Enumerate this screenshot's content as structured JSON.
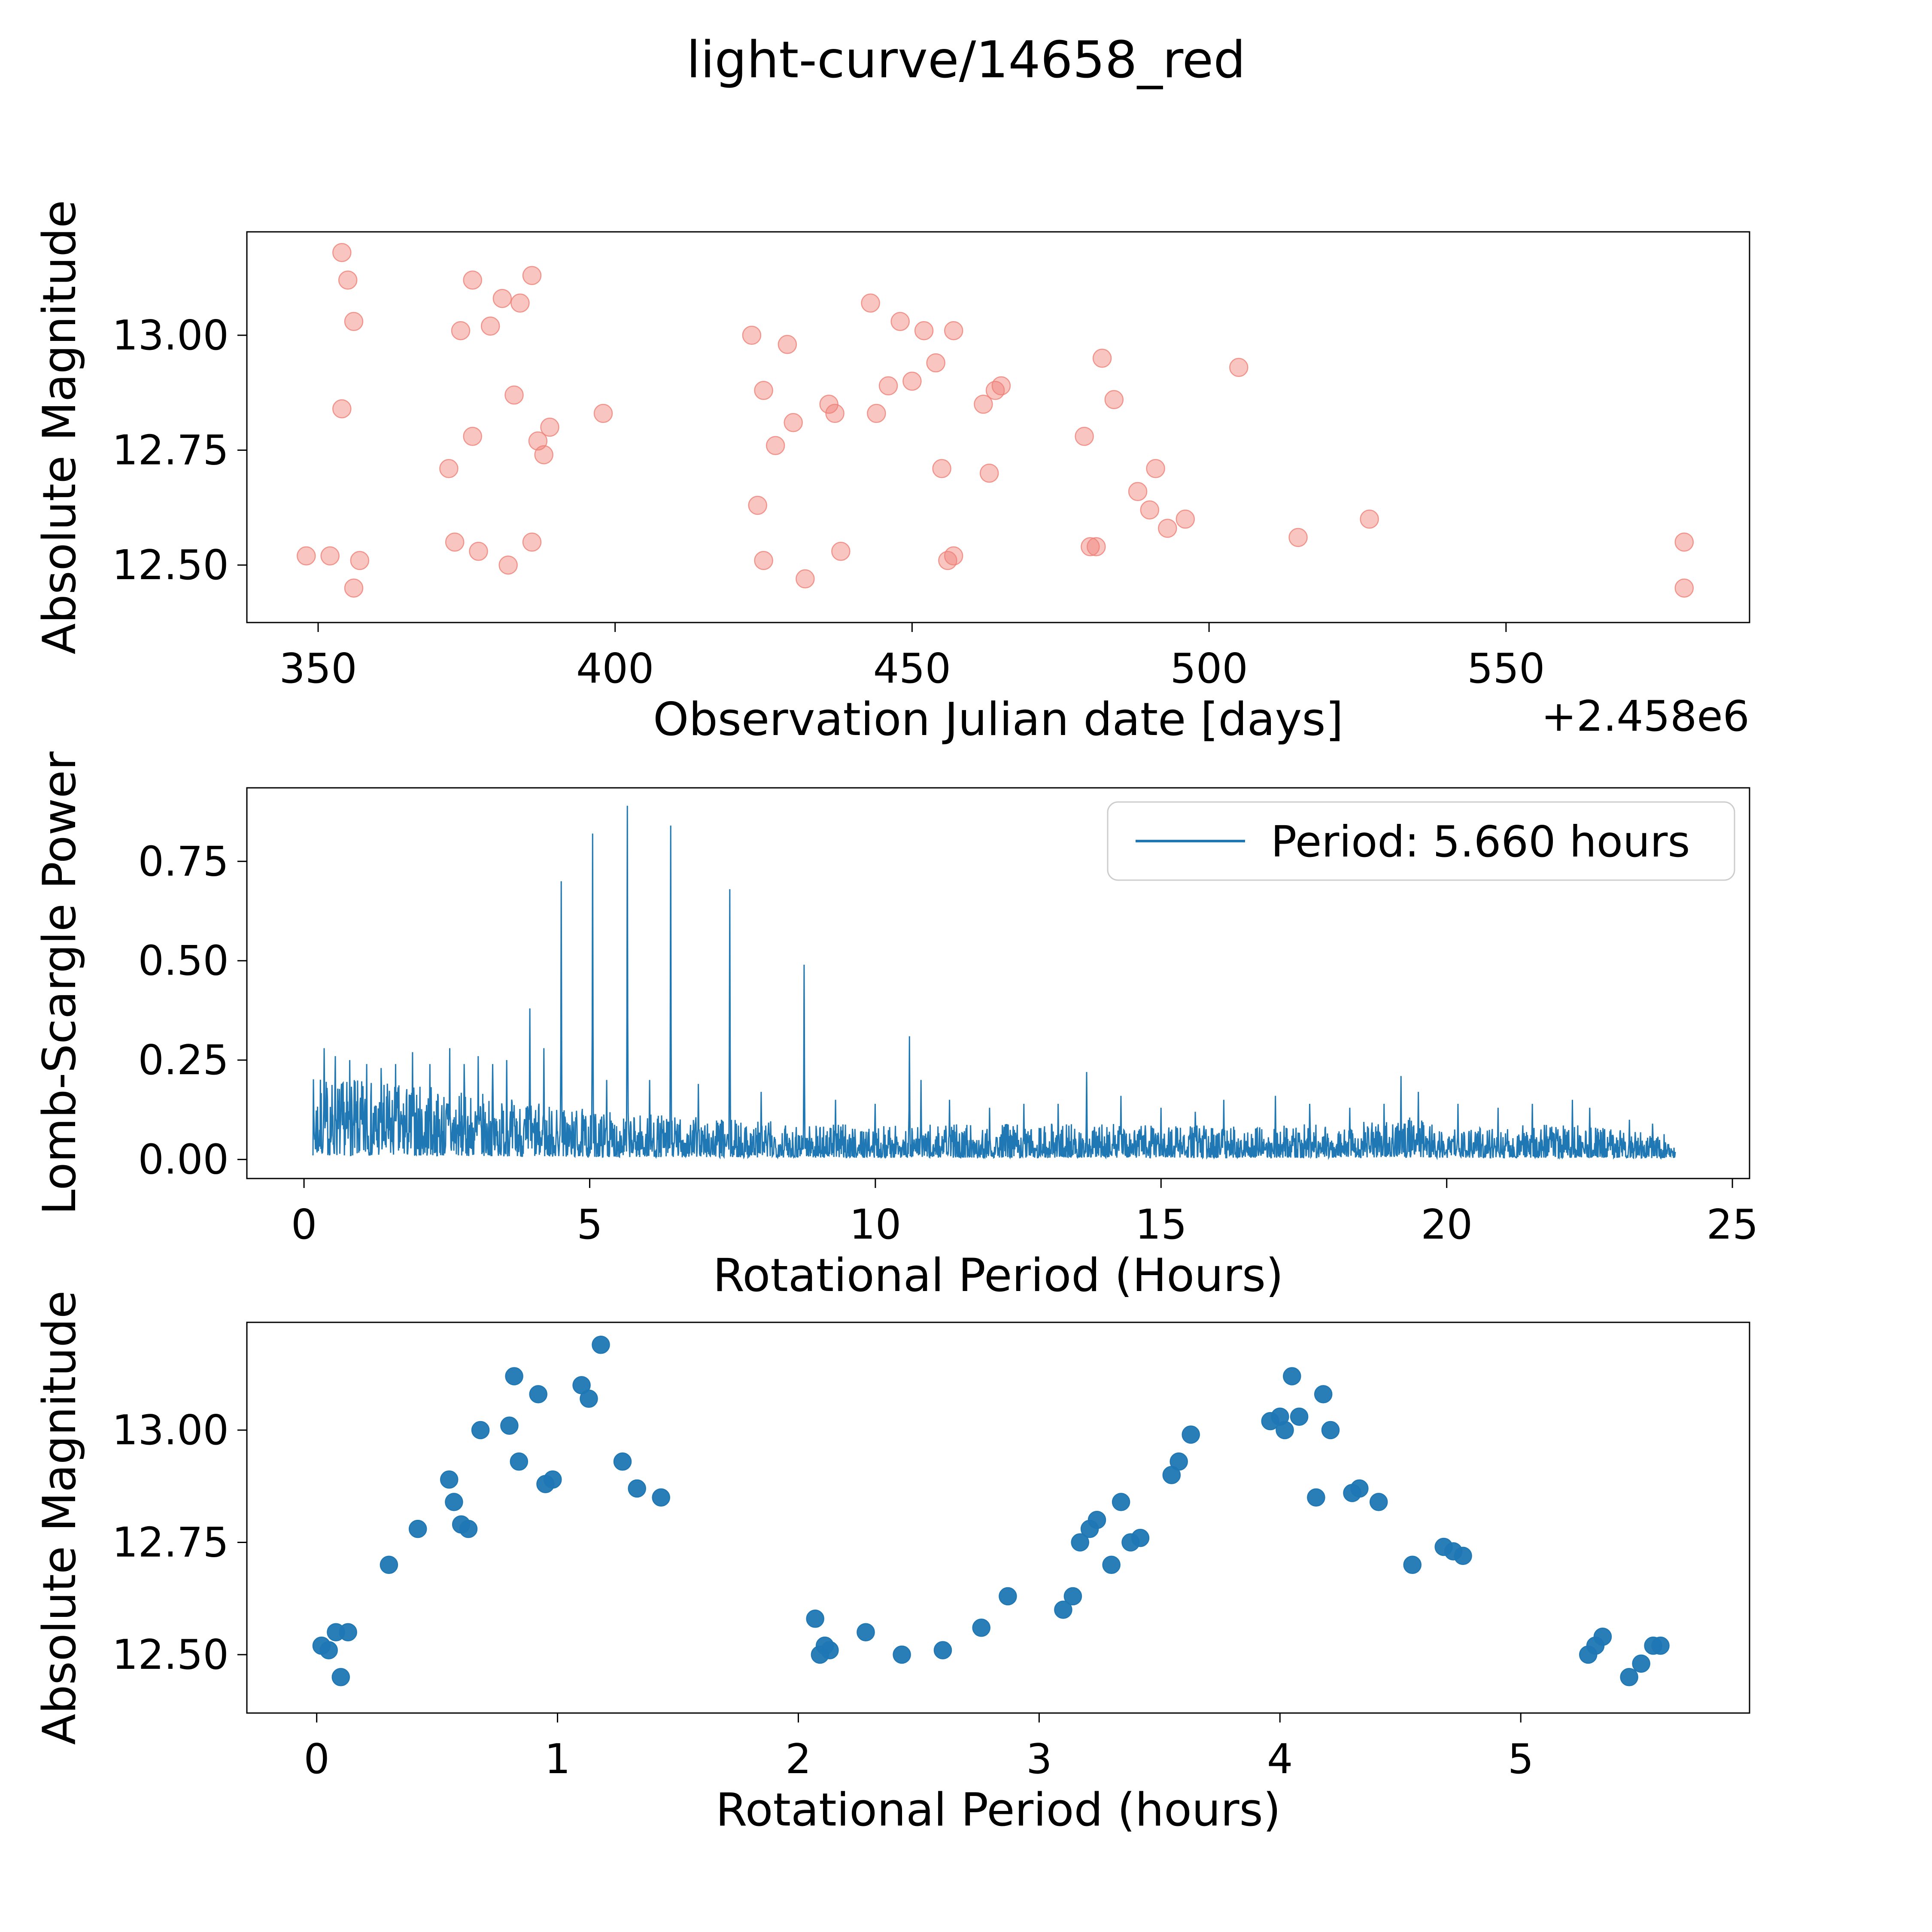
{
  "title": "light-curve/14658_red",
  "colors": {
    "pink": "#ef7f76",
    "blue": "#1f77b4",
    "axis": "#000000",
    "legend_border": "#cccccc",
    "background": "#ffffff"
  },
  "chart_data": [
    {
      "type": "scatter",
      "name": "raw-light-curve",
      "xlabel": "Observation Julian date [days]",
      "x_offset_label": "+2.458e6",
      "ylabel": "Absolute Magnitude",
      "xlim": [
        338,
        591
      ],
      "ylim": [
        12.375,
        13.225
      ],
      "xticks": [
        350,
        400,
        450,
        500,
        550
      ],
      "xtick_labels": [
        "350",
        "400",
        "450",
        "500",
        "550"
      ],
      "yticks": [
        12.5,
        12.75,
        13.0
      ],
      "ytick_labels": [
        "12.50",
        "12.75",
        "13.00"
      ],
      "marker_color": "#ef7f76",
      "points": [
        [
          348,
          12.52
        ],
        [
          352,
          12.52
        ],
        [
          354,
          13.18
        ],
        [
          355,
          13.12
        ],
        [
          356,
          13.03
        ],
        [
          354,
          12.84
        ],
        [
          356,
          12.45
        ],
        [
          357,
          12.51
        ],
        [
          372,
          12.71
        ],
        [
          373,
          12.55
        ],
        [
          374,
          13.01
        ],
        [
          376,
          13.12
        ],
        [
          376,
          12.78
        ],
        [
          377,
          12.53
        ],
        [
          379,
          13.02
        ],
        [
          381,
          13.08
        ],
        [
          382,
          12.5
        ],
        [
          383,
          12.87
        ],
        [
          384,
          13.07
        ],
        [
          386,
          13.13
        ],
        [
          386,
          12.55
        ],
        [
          387,
          12.77
        ],
        [
          388,
          12.74
        ],
        [
          389,
          12.8
        ],
        [
          398,
          12.83
        ],
        [
          423,
          13.0
        ],
        [
          424,
          12.63
        ],
        [
          425,
          12.88
        ],
        [
          425,
          12.51
        ],
        [
          427,
          12.76
        ],
        [
          429,
          12.98
        ],
        [
          430,
          12.81
        ],
        [
          432,
          12.47
        ],
        [
          436,
          12.85
        ],
        [
          437,
          12.83
        ],
        [
          438,
          12.53
        ],
        [
          443,
          13.07
        ],
        [
          444,
          12.83
        ],
        [
          446,
          12.89
        ],
        [
          448,
          13.03
        ],
        [
          450,
          12.9
        ],
        [
          452,
          13.01
        ],
        [
          454,
          12.94
        ],
        [
          455,
          12.71
        ],
        [
          456,
          12.51
        ],
        [
          457,
          12.52
        ],
        [
          457,
          13.01
        ],
        [
          462,
          12.85
        ],
        [
          463,
          12.7
        ],
        [
          464,
          12.88
        ],
        [
          465,
          12.89
        ],
        [
          479,
          12.78
        ],
        [
          480,
          12.54
        ],
        [
          481,
          12.54
        ],
        [
          482,
          12.95
        ],
        [
          484,
          12.86
        ],
        [
          488,
          12.66
        ],
        [
          490,
          12.62
        ],
        [
          491,
          12.71
        ],
        [
          493,
          12.58
        ],
        [
          496,
          12.6
        ],
        [
          505,
          12.93
        ],
        [
          515,
          12.56
        ],
        [
          527,
          12.6
        ],
        [
          580,
          12.55
        ],
        [
          580,
          12.45
        ]
      ]
    },
    {
      "type": "line",
      "name": "lomb-scargle-periodogram",
      "xlabel": "Rotational Period (Hours)",
      "ylabel": "Lomb-Scargle Power",
      "xlim": [
        -1.0,
        25.3
      ],
      "ylim": [
        -0.048,
        0.935
      ],
      "xticks": [
        0,
        5,
        10,
        15,
        20,
        25
      ],
      "xtick_labels": [
        "0",
        "5",
        "10",
        "15",
        "20",
        "25"
      ],
      "yticks": [
        0.0,
        0.25,
        0.5,
        0.75
      ],
      "ytick_labels": [
        "0.00",
        "0.25",
        "0.50",
        "0.75"
      ],
      "line_color": "#1f77b4",
      "legend": {
        "label": "Period: 5.660 hours"
      },
      "best_period_hours": 5.66,
      "noise": {
        "x_start": 0.15,
        "x_end": 24.0,
        "n_points": 3300,
        "seed": 7,
        "envelope": [
          [
            0.15,
            0.21
          ],
          [
            1.0,
            0.2
          ],
          [
            2.0,
            0.19
          ],
          [
            3.0,
            0.17
          ],
          [
            4.0,
            0.145
          ],
          [
            5.0,
            0.125
          ],
          [
            6.0,
            0.115
          ],
          [
            7.0,
            0.105
          ],
          [
            8.0,
            0.1
          ],
          [
            10.0,
            0.085
          ],
          [
            12.0,
            0.09
          ],
          [
            14.0,
            0.09
          ],
          [
            16.0,
            0.085
          ],
          [
            18.0,
            0.09
          ],
          [
            19.3,
            0.11
          ],
          [
            20.0,
            0.08
          ],
          [
            22.0,
            0.09
          ],
          [
            24.0,
            0.065
          ]
        ],
        "peaks": [
          [
            0.35,
            0.28
          ],
          [
            0.55,
            0.26
          ],
          [
            0.8,
            0.25
          ],
          [
            1.1,
            0.24
          ],
          [
            1.35,
            0.23
          ],
          [
            1.6,
            0.24
          ],
          [
            1.9,
            0.27
          ],
          [
            2.2,
            0.24
          ],
          [
            2.55,
            0.28
          ],
          [
            2.8,
            0.24
          ],
          [
            3.05,
            0.26
          ],
          [
            3.3,
            0.24
          ],
          [
            3.55,
            0.25
          ],
          [
            3.95,
            0.38
          ],
          [
            4.2,
            0.28
          ],
          [
            4.5,
            0.7
          ],
          [
            5.05,
            0.82
          ],
          [
            5.3,
            0.2
          ],
          [
            5.66,
            0.89
          ],
          [
            6.05,
            0.2
          ],
          [
            6.42,
            0.84
          ],
          [
            6.9,
            0.19
          ],
          [
            7.45,
            0.68
          ],
          [
            8.0,
            0.17
          ],
          [
            8.75,
            0.49
          ],
          [
            9.3,
            0.15
          ],
          [
            10.0,
            0.14
          ],
          [
            10.6,
            0.31
          ],
          [
            10.8,
            0.2
          ],
          [
            11.3,
            0.15
          ],
          [
            12.0,
            0.13
          ],
          [
            12.6,
            0.14
          ],
          [
            13.2,
            0.14
          ],
          [
            13.7,
            0.22
          ],
          [
            14.3,
            0.16
          ],
          [
            15.0,
            0.13
          ],
          [
            15.6,
            0.12
          ],
          [
            16.1,
            0.15
          ],
          [
            17.0,
            0.16
          ],
          [
            17.6,
            0.14
          ],
          [
            18.3,
            0.13
          ],
          [
            18.9,
            0.14
          ],
          [
            19.2,
            0.21
          ],
          [
            19.5,
            0.17
          ],
          [
            20.2,
            0.14
          ],
          [
            20.9,
            0.13
          ],
          [
            21.5,
            0.14
          ],
          [
            22.2,
            0.15
          ],
          [
            22.5,
            0.13
          ],
          [
            23.2,
            0.1
          ],
          [
            23.6,
            0.09
          ]
        ]
      }
    },
    {
      "type": "scatter",
      "name": "phase-folded-light-curve",
      "xlabel": "Rotational Period (hours)",
      "ylabel": "Absolute Magnitude",
      "xlim": [
        -0.29,
        5.95
      ],
      "ylim": [
        12.37,
        13.24
      ],
      "xticks": [
        0,
        1,
        2,
        3,
        4,
        5
      ],
      "xtick_labels": [
        "0",
        "1",
        "2",
        "3",
        "4",
        "5"
      ],
      "yticks": [
        12.5,
        12.75,
        13.0
      ],
      "ytick_labels": [
        "12.50",
        "12.75",
        "13.00"
      ],
      "marker_color": "#1f77b4",
      "points": [
        [
          0.02,
          12.52
        ],
        [
          0.05,
          12.51
        ],
        [
          0.08,
          12.55
        ],
        [
          0.1,
          12.45
        ],
        [
          0.13,
          12.55
        ],
        [
          0.3,
          12.7
        ],
        [
          0.42,
          12.78
        ],
        [
          0.55,
          12.89
        ],
        [
          0.57,
          12.84
        ],
        [
          0.6,
          12.79
        ],
        [
          0.63,
          12.78
        ],
        [
          0.68,
          13.0
        ],
        [
          0.8,
          13.01
        ],
        [
          0.82,
          13.12
        ],
        [
          0.84,
          12.93
        ],
        [
          0.92,
          13.08
        ],
        [
          0.95,
          12.88
        ],
        [
          0.98,
          12.89
        ],
        [
          1.1,
          13.1
        ],
        [
          1.13,
          13.07
        ],
        [
          1.18,
          13.19
        ],
        [
          1.27,
          12.93
        ],
        [
          1.33,
          12.87
        ],
        [
          1.43,
          12.85
        ],
        [
          2.07,
          12.58
        ],
        [
          2.09,
          12.5
        ],
        [
          2.11,
          12.52
        ],
        [
          2.13,
          12.51
        ],
        [
          2.28,
          12.55
        ],
        [
          2.43,
          12.5
        ],
        [
          2.6,
          12.51
        ],
        [
          2.76,
          12.56
        ],
        [
          2.87,
          12.63
        ],
        [
          3.1,
          12.6
        ],
        [
          3.14,
          12.63
        ],
        [
          3.17,
          12.75
        ],
        [
          3.21,
          12.78
        ],
        [
          3.24,
          12.8
        ],
        [
          3.3,
          12.7
        ],
        [
          3.34,
          12.84
        ],
        [
          3.38,
          12.75
        ],
        [
          3.42,
          12.76
        ],
        [
          3.55,
          12.9
        ],
        [
          3.58,
          12.93
        ],
        [
          3.63,
          12.99
        ],
        [
          3.96,
          13.02
        ],
        [
          4.0,
          13.03
        ],
        [
          4.02,
          13.0
        ],
        [
          4.05,
          13.12
        ],
        [
          4.08,
          13.03
        ],
        [
          4.15,
          12.85
        ],
        [
          4.18,
          13.08
        ],
        [
          4.21,
          13.0
        ],
        [
          4.3,
          12.86
        ],
        [
          4.33,
          12.87
        ],
        [
          4.41,
          12.84
        ],
        [
          4.55,
          12.7
        ],
        [
          4.68,
          12.74
        ],
        [
          4.72,
          12.73
        ],
        [
          4.76,
          12.72
        ],
        [
          5.28,
          12.5
        ],
        [
          5.31,
          12.52
        ],
        [
          5.34,
          12.54
        ],
        [
          5.45,
          12.45
        ],
        [
          5.5,
          12.48
        ],
        [
          5.55,
          12.52
        ],
        [
          5.58,
          12.52
        ]
      ]
    }
  ]
}
